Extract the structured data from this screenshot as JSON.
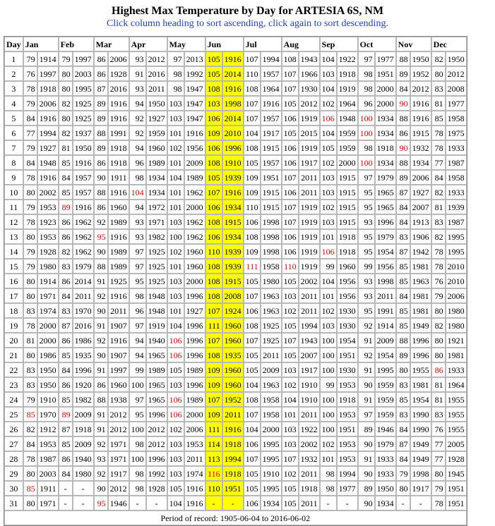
{
  "title": "Highest Max Temperature by Day for ARTESIA 6S, NM",
  "subtitle": "Click column heading to sort ascending, click again to sort descending.",
  "headers": [
    "Day",
    "Jan",
    "Feb",
    "Mar",
    "Apr",
    "May",
    "Jun",
    "Jul",
    "Aug",
    "Sep",
    "Oct",
    "Nov",
    "Dec"
  ],
  "highlight_column": "Jun",
  "colors": {
    "highlight": "#ffff00",
    "notable_value": "#e00000",
    "subtitle": "#1f3fbf"
  },
  "rows": [
    [
      1,
      [
        79,
        1914
      ],
      [
        79,
        1997
      ],
      [
        86,
        2006
      ],
      [
        93,
        2012
      ],
      [
        97,
        2013
      ],
      [
        105,
        1916
      ],
      [
        107,
        1994
      ],
      [
        108,
        1943
      ],
      [
        104,
        1922
      ],
      [
        97,
        1977
      ],
      [
        88,
        1950
      ],
      [
        82,
        1950
      ]
    ],
    [
      2,
      [
        76,
        1997
      ],
      [
        80,
        2003
      ],
      [
        86,
        1928
      ],
      [
        91,
        2016
      ],
      [
        98,
        1992
      ],
      [
        105,
        2014
      ],
      [
        110,
        1957
      ],
      [
        107,
        1966
      ],
      [
        103,
        1918
      ],
      [
        98,
        1951
      ],
      [
        89,
        1952
      ],
      [
        80,
        2012
      ]
    ],
    [
      3,
      [
        78,
        1918
      ],
      [
        80,
        1995
      ],
      [
        87,
        2016
      ],
      [
        93,
        2011
      ],
      [
        98,
        1947
      ],
      [
        108,
        1916
      ],
      [
        108,
        1964
      ],
      [
        107,
        1930
      ],
      [
        104,
        1919
      ],
      [
        98,
        2000
      ],
      [
        84,
        2012
      ],
      [
        83,
        2008
      ]
    ],
    [
      4,
      [
        79,
        2006
      ],
      [
        82,
        1925
      ],
      [
        89,
        1916
      ],
      [
        94,
        1950
      ],
      [
        103,
        1947
      ],
      [
        103,
        1998
      ],
      [
        107,
        1916
      ],
      [
        105,
        2012
      ],
      [
        102,
        1964
      ],
      [
        96,
        2000
      ],
      [
        90,
        1916
      ],
      [
        81,
        1977
      ]
    ],
    [
      5,
      [
        84,
        1916
      ],
      [
        80,
        1925
      ],
      [
        89,
        1916
      ],
      [
        92,
        1927
      ],
      [
        103,
        1947
      ],
      [
        106,
        2014
      ],
      [
        107,
        1957
      ],
      [
        106,
        1919
      ],
      [
        106,
        1948
      ],
      [
        100,
        1934
      ],
      [
        88,
        1916
      ],
      [
        85,
        1958
      ]
    ],
    [
      6,
      [
        77,
        1994
      ],
      [
        82,
        1937
      ],
      [
        88,
        1991
      ],
      [
        92,
        1959
      ],
      [
        101,
        1916
      ],
      [
        109,
        2010
      ],
      [
        104,
        1917
      ],
      [
        105,
        2015
      ],
      [
        104,
        1959
      ],
      [
        100,
        1934
      ],
      [
        86,
        1915
      ],
      [
        78,
        1975
      ]
    ],
    [
      7,
      [
        79,
        1927
      ],
      [
        81,
        1950
      ],
      [
        89,
        1918
      ],
      [
        94,
        1960
      ],
      [
        102,
        1956
      ],
      [
        106,
        1996
      ],
      [
        108,
        1915
      ],
      [
        106,
        1919
      ],
      [
        105,
        1959
      ],
      [
        98,
        1918
      ],
      [
        90,
        1932
      ],
      [
        78,
        1933
      ]
    ],
    [
      8,
      [
        84,
        1948
      ],
      [
        85,
        1916
      ],
      [
        86,
        1918
      ],
      [
        96,
        1989
      ],
      [
        101,
        2009
      ],
      [
        108,
        1910
      ],
      [
        105,
        1957
      ],
      [
        106,
        1917
      ],
      [
        102,
        2000
      ],
      [
        100,
        1934
      ],
      [
        88,
        1934
      ],
      [
        77,
        1987
      ]
    ],
    [
      9,
      [
        78,
        1916
      ],
      [
        84,
        1957
      ],
      [
        90,
        1911
      ],
      [
        98,
        1934
      ],
      [
        104,
        1989
      ],
      [
        105,
        1939
      ],
      [
        109,
        1951
      ],
      [
        107,
        2011
      ],
      [
        103,
        1915
      ],
      [
        97,
        1979
      ],
      [
        89,
        2006
      ],
      [
        84,
        1958
      ]
    ],
    [
      10,
      [
        80,
        2002
      ],
      [
        85,
        1957
      ],
      [
        88,
        1916
      ],
      [
        104,
        1934
      ],
      [
        101,
        1962
      ],
      [
        107,
        1916
      ],
      [
        109,
        1915
      ],
      [
        106,
        2011
      ],
      [
        103,
        1915
      ],
      [
        95,
        1965
      ],
      [
        87,
        1927
      ],
      [
        82,
        1933
      ]
    ],
    [
      11,
      [
        79,
        1953
      ],
      [
        89,
        1916
      ],
      [
        86,
        1960
      ],
      [
        94,
        1972
      ],
      [
        101,
        2000
      ],
      [
        106,
        1934
      ],
      [
        110,
        1915
      ],
      [
        107,
        1919
      ],
      [
        102,
        1915
      ],
      [
        95,
        1965
      ],
      [
        84,
        2007
      ],
      [
        81,
        1939
      ]
    ],
    [
      12,
      [
        78,
        1923
      ],
      [
        86,
        1962
      ],
      [
        92,
        1989
      ],
      [
        93,
        1971
      ],
      [
        103,
        1962
      ],
      [
        108,
        1915
      ],
      [
        106,
        1998
      ],
      [
        107,
        1919
      ],
      [
        103,
        1915
      ],
      [
        93,
        1996
      ],
      [
        84,
        1913
      ],
      [
        83,
        1987
      ]
    ],
    [
      13,
      [
        80,
        1953
      ],
      [
        86,
        1962
      ],
      [
        95,
        1916
      ],
      [
        93,
        1982
      ],
      [
        100,
        1962
      ],
      [
        106,
        1934
      ],
      [
        108,
        1998
      ],
      [
        106,
        1919
      ],
      [
        101,
        1918
      ],
      [
        95,
        1979
      ],
      [
        83,
        1906
      ],
      [
        82,
        1995
      ]
    ],
    [
      14,
      [
        79,
        1928
      ],
      [
        82,
        1962
      ],
      [
        90,
        1989
      ],
      [
        97,
        1925
      ],
      [
        102,
        1960
      ],
      [
        110,
        1939
      ],
      [
        109,
        1998
      ],
      [
        106,
        1919
      ],
      [
        106,
        1918
      ],
      [
        95,
        1954
      ],
      [
        87,
        1942
      ],
      [
        78,
        1995
      ]
    ],
    [
      15,
      [
        79,
        1980
      ],
      [
        83,
        1979
      ],
      [
        88,
        1989
      ],
      [
        97,
        1925
      ],
      [
        101,
        1960
      ],
      [
        108,
        1939
      ],
      [
        111,
        1958
      ],
      [
        110,
        1919
      ],
      [
        99,
        1960
      ],
      [
        99,
        1956
      ],
      [
        85,
        1981
      ],
      [
        78,
        2010
      ]
    ],
    [
      16,
      [
        80,
        1914
      ],
      [
        86,
        2014
      ],
      [
        91,
        1925
      ],
      [
        95,
        1925
      ],
      [
        103,
        2000
      ],
      [
        108,
        1915
      ],
      [
        105,
        1980
      ],
      [
        105,
        2002
      ],
      [
        104,
        1956
      ],
      [
        93,
        1998
      ],
      [
        85,
        1963
      ],
      [
        76,
        2010
      ]
    ],
    [
      17,
      [
        80,
        1971
      ],
      [
        84,
        2011
      ],
      [
        92,
        1916
      ],
      [
        98,
        1948
      ],
      [
        103,
        1996
      ],
      [
        108,
        2008
      ],
      [
        107,
        1963
      ],
      [
        103,
        2011
      ],
      [
        101,
        1956
      ],
      [
        93,
        2011
      ],
      [
        84,
        1981
      ],
      [
        79,
        2006
      ]
    ],
    [
      18,
      [
        83,
        1974
      ],
      [
        83,
        1970
      ],
      [
        90,
        2011
      ],
      [
        96,
        1948
      ],
      [
        101,
        1927
      ],
      [
        107,
        1924
      ],
      [
        106,
        1963
      ],
      [
        102,
        2011
      ],
      [
        102,
        1930
      ],
      [
        95,
        1991
      ],
      [
        85,
        1981
      ],
      [
        80,
        1980
      ]
    ],
    [
      19,
      [
        78,
        2000
      ],
      [
        87,
        2016
      ],
      [
        91,
        1907
      ],
      [
        97,
        1919
      ],
      [
        104,
        1996
      ],
      [
        111,
        1960
      ],
      [
        108,
        1925
      ],
      [
        105,
        1994
      ],
      [
        103,
        1930
      ],
      [
        92,
        1914
      ],
      [
        85,
        1949
      ],
      [
        82,
        1980
      ]
    ],
    [
      20,
      [
        81,
        2000
      ],
      [
        86,
        1986
      ],
      [
        92,
        1916
      ],
      [
        94,
        1940
      ],
      [
        106,
        1996
      ],
      [
        107,
        1960
      ],
      [
        107,
        1925
      ],
      [
        107,
        1943
      ],
      [
        100,
        1954
      ],
      [
        91,
        2009
      ],
      [
        88,
        1996
      ],
      [
        80,
        1921
      ]
    ],
    [
      21,
      [
        80,
        1986
      ],
      [
        85,
        1935
      ],
      [
        90,
        1907
      ],
      [
        94,
        1965
      ],
      [
        106,
        1996
      ],
      [
        108,
        1935
      ],
      [
        105,
        2011
      ],
      [
        105,
        2007
      ],
      [
        100,
        1951
      ],
      [
        92,
        1954
      ],
      [
        89,
        1996
      ],
      [
        80,
        1981
      ]
    ],
    [
      22,
      [
        83,
        1950
      ],
      [
        84,
        1996
      ],
      [
        91,
        1997
      ],
      [
        99,
        1989
      ],
      [
        105,
        1989
      ],
      [
        109,
        1960
      ],
      [
        105,
        2009
      ],
      [
        103,
        1917
      ],
      [
        100,
        1930
      ],
      [
        91,
        1995
      ],
      [
        80,
        1955
      ],
      [
        86,
        1933
      ]
    ],
    [
      23,
      [
        83,
        1950
      ],
      [
        86,
        1920
      ],
      [
        86,
        1960
      ],
      [
        100,
        1965
      ],
      [
        103,
        1996
      ],
      [
        109,
        1960
      ],
      [
        104,
        1963
      ],
      [
        102,
        1910
      ],
      [
        99,
        1953
      ],
      [
        90,
        1959
      ],
      [
        83,
        1981
      ],
      [
        81,
        1964
      ]
    ],
    [
      24,
      [
        79,
        1910
      ],
      [
        85,
        1982
      ],
      [
        88,
        1938
      ],
      [
        97,
        1965
      ],
      [
        106,
        1989
      ],
      [
        107,
        1952
      ],
      [
        108,
        1958
      ],
      [
        104,
        1910
      ],
      [
        100,
        1918
      ],
      [
        91,
        1959
      ],
      [
        85,
        1954
      ],
      [
        81,
        1955
      ]
    ],
    [
      25,
      [
        85,
        1970
      ],
      [
        89,
        2009
      ],
      [
        91,
        2012
      ],
      [
        95,
        1996
      ],
      [
        106,
        2000
      ],
      [
        109,
        2011
      ],
      [
        107,
        1958
      ],
      [
        101,
        2011
      ],
      [
        100,
        1953
      ],
      [
        97,
        1959
      ],
      [
        83,
        1990
      ],
      [
        83,
        1955
      ]
    ],
    [
      26,
      [
        82,
        1912
      ],
      [
        87,
        1918
      ],
      [
        91,
        2012
      ],
      [
        100,
        2012
      ],
      [
        102,
        2006
      ],
      [
        111,
        1916
      ],
      [
        104,
        2000
      ],
      [
        103,
        1922
      ],
      [
        100,
        1951
      ],
      [
        89,
        1946
      ],
      [
        84,
        1990
      ],
      [
        76,
        1955
      ]
    ],
    [
      27,
      [
        84,
        1953
      ],
      [
        85,
        2009
      ],
      [
        92,
        1971
      ],
      [
        98,
        2012
      ],
      [
        103,
        1953
      ],
      [
        114,
        1918
      ],
      [
        106,
        1995
      ],
      [
        103,
        2002
      ],
      [
        102,
        1953
      ],
      [
        90,
        1979
      ],
      [
        87,
        1949
      ],
      [
        77,
        2005
      ]
    ],
    [
      28,
      [
        78,
        1987
      ],
      [
        86,
        1940
      ],
      [
        93,
        1971
      ],
      [
        100,
        1996
      ],
      [
        103,
        2011
      ],
      [
        113,
        1994
      ],
      [
        107,
        1995
      ],
      [
        107,
        1932
      ],
      [
        101,
        1953
      ],
      [
        91,
        1933
      ],
      [
        84,
        1949
      ],
      [
        77,
        1928
      ]
    ],
    [
      29,
      [
        80,
        2003
      ],
      [
        84,
        1980
      ],
      [
        92,
        1917
      ],
      [
        98,
        1992
      ],
      [
        103,
        1974
      ],
      [
        116,
        1918
      ],
      [
        105,
        1910
      ],
      [
        102,
        2011
      ],
      [
        98,
        1994
      ],
      [
        90,
        1933
      ],
      [
        79,
        1998
      ],
      [
        80,
        1945
      ]
    ],
    [
      30,
      [
        85,
        1911
      ],
      [
        "-",
        "-"
      ],
      [
        90,
        2012
      ],
      [
        98,
        1928
      ],
      [
        105,
        1916
      ],
      [
        110,
        1951
      ],
      [
        105,
        1995
      ],
      [
        105,
        1918
      ],
      [
        98,
        1977
      ],
      [
        89,
        1950
      ],
      [
        80,
        1917
      ],
      [
        79,
        1951
      ]
    ],
    [
      31,
      [
        80,
        1971
      ],
      [
        "-",
        "-"
      ],
      [
        95,
        1946
      ],
      [
        "-",
        "-"
      ],
      [
        104,
        1916
      ],
      [
        "-",
        "-"
      ],
      [
        106,
        1934
      ],
      [
        105,
        2011
      ],
      [
        "-",
        "-"
      ],
      [
        90,
        1934
      ],
      [
        "-",
        "-"
      ],
      [
        78,
        1951
      ]
    ]
  ],
  "red_values": [
    [
      2,
      11
    ],
    [
      3,
      13
    ],
    [
      3,
      31
    ],
    [
      4,
      10
    ],
    [
      5,
      20
    ],
    [
      5,
      21
    ],
    [
      5,
      24
    ],
    [
      5,
      25
    ],
    [
      6,
      29
    ],
    [
      7,
      15
    ],
    [
      8,
      15
    ],
    [
      9,
      5
    ],
    [
      9,
      14
    ],
    [
      10,
      5
    ],
    [
      10,
      6
    ],
    [
      10,
      8
    ],
    [
      11,
      4
    ],
    [
      11,
      7
    ],
    [
      12,
      22
    ],
    [
      1,
      25
    ],
    [
      1,
      30
    ],
    [
      2,
      25
    ]
  ],
  "footer": "Period of record:  1905-06-04 to 2016-06-02"
}
